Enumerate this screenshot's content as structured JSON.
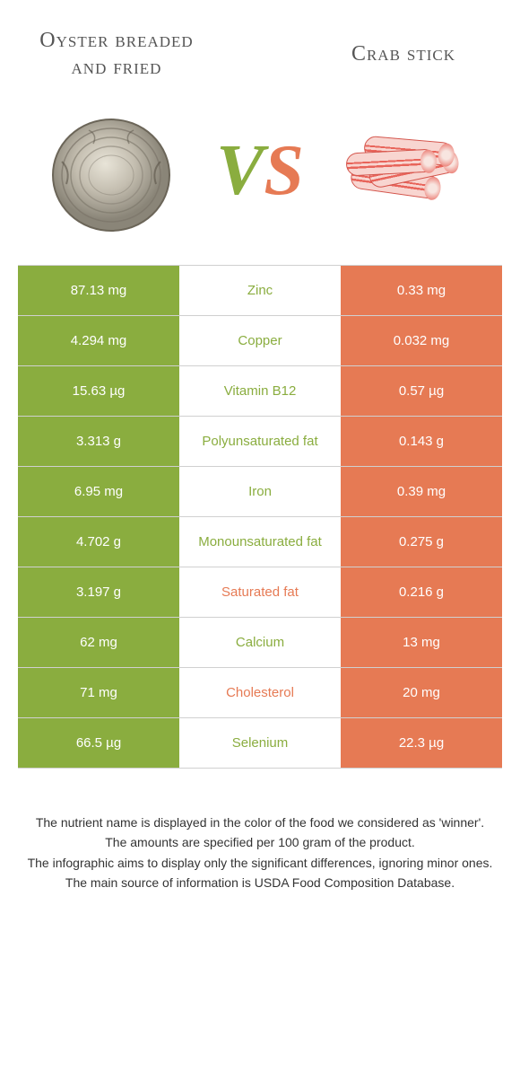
{
  "header": {
    "left_title": "Oyster breaded and fried",
    "right_title": "Crab stick",
    "vs_v": "V",
    "vs_s": "S"
  },
  "colors": {
    "green": "#8aad3f",
    "orange": "#e67a54",
    "border": "#d0d0d0",
    "text": "#333333",
    "title_text": "#555555",
    "white": "#ffffff"
  },
  "table_rows": [
    {
      "left": "87.13 mg",
      "nutrient": "Zinc",
      "right": "0.33 mg",
      "winner": "green"
    },
    {
      "left": "4.294 mg",
      "nutrient": "Copper",
      "right": "0.032 mg",
      "winner": "green"
    },
    {
      "left": "15.63 µg",
      "nutrient": "Vitamin B12",
      "right": "0.57 µg",
      "winner": "green"
    },
    {
      "left": "3.313 g",
      "nutrient": "Polyunsaturated fat",
      "right": "0.143 g",
      "winner": "green"
    },
    {
      "left": "6.95 mg",
      "nutrient": "Iron",
      "right": "0.39 mg",
      "winner": "green"
    },
    {
      "left": "4.702 g",
      "nutrient": "Monounsaturated fat",
      "right": "0.275 g",
      "winner": "green"
    },
    {
      "left": "3.197 g",
      "nutrient": "Saturated fat",
      "right": "0.216 g",
      "winner": "orange"
    },
    {
      "left": "62 mg",
      "nutrient": "Calcium",
      "right": "13 mg",
      "winner": "green"
    },
    {
      "left": "71 mg",
      "nutrient": "Cholesterol",
      "right": "20 mg",
      "winner": "orange"
    },
    {
      "left": "66.5 µg",
      "nutrient": "Selenium",
      "right": "22.3 µg",
      "winner": "green"
    }
  ],
  "footer": {
    "line1": "The nutrient name is displayed in the color of the food we considered as 'winner'.",
    "line2": "The amounts are specified per 100 gram of the product.",
    "line3": "The infographic aims to display only the significant differences, ignoring minor ones.",
    "line4": "The main source of information is USDA Food Composition Database."
  },
  "fonts": {
    "title_size": 24,
    "cell_size": 15,
    "footer_size": 14,
    "vs_size": 80
  }
}
